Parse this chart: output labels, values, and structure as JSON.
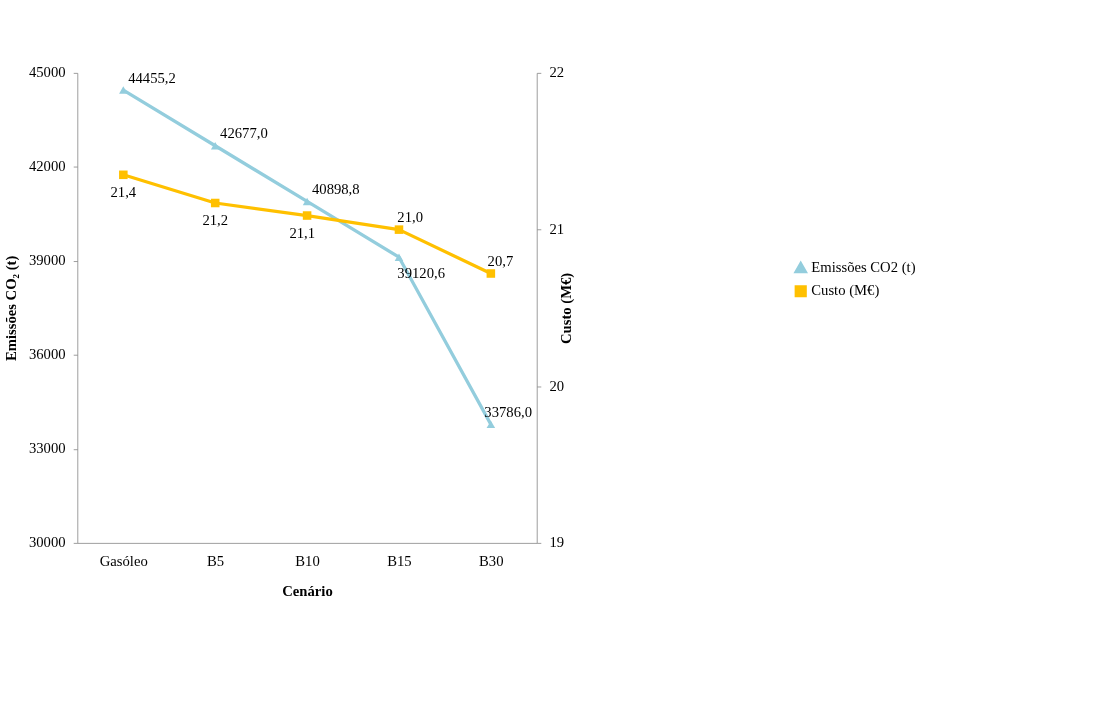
{
  "chart_data": {
    "type": "line",
    "xlabel": "Cenário",
    "ylabel": "Emissões CO₂ (t)",
    "y2label": "Custo (M€)",
    "categories": [
      "Gasóleo",
      "B5",
      "B10",
      "B15",
      "B30"
    ],
    "series": [
      {
        "name": "Emissões CO2 (t)",
        "color": "#93cddd",
        "marker": "triangle",
        "values": [
          44455.2,
          42677.0,
          40898.8,
          39120.6,
          33786.0
        ],
        "value_labels": [
          "44455,2",
          "42677,0",
          "40898,8",
          "39120,6",
          "33786,0"
        ]
      },
      {
        "name": "Custo (M€)",
        "color": "#ffc000",
        "marker": "square",
        "axis": "y2",
        "values": [
          21.35,
          21.17,
          21.09,
          21.0,
          20.72
        ],
        "value_labels": [
          "21,4",
          "21,2",
          "21,1",
          "21,0",
          "20,7"
        ]
      }
    ],
    "ylim": [
      30000,
      45000
    ],
    "yticks": [
      30000,
      33000,
      36000,
      39000,
      42000,
      45000
    ],
    "y2lim": [
      19,
      22
    ],
    "y2ticks": [
      19,
      20,
      21,
      22
    ],
    "grid": false,
    "legend": "right",
    "line_style": "solid"
  }
}
